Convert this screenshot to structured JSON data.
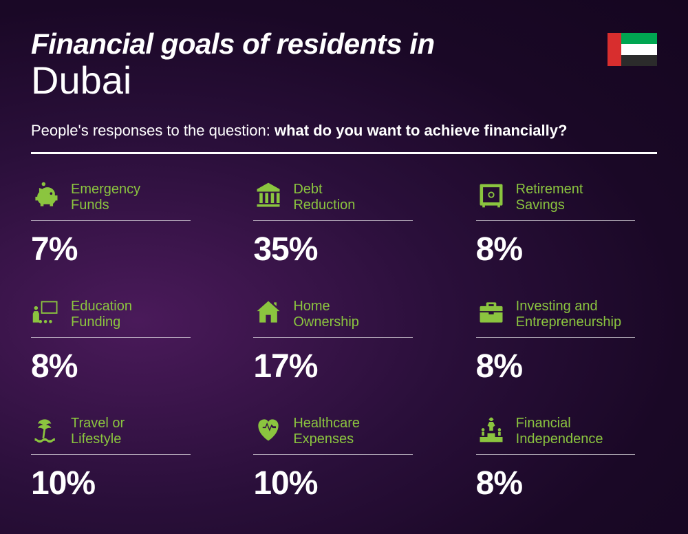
{
  "colors": {
    "accent": "#8bc53f",
    "text": "#ffffff",
    "background_gradient": [
      "#4a1a5a",
      "#2a0f3a",
      "#1a0826",
      "#150620"
    ],
    "flag": {
      "red": "#d82e2e",
      "green": "#00a651",
      "white": "#ffffff",
      "black": "#2b2b2b"
    }
  },
  "title_line1": "Financial goals of residents in",
  "title_line2": "Dubai",
  "subtitle_prefix": "People's responses to the question: ",
  "subtitle_bold": "what do you want to achieve financially?",
  "items": [
    {
      "label": "Emergency\nFunds",
      "value": "7%",
      "icon": "piggy-bank"
    },
    {
      "label": "Debt\nReduction",
      "value": "35%",
      "icon": "bank"
    },
    {
      "label": "Retirement\nSavings",
      "value": "8%",
      "icon": "safe"
    },
    {
      "label": "Education\nFunding",
      "value": "8%",
      "icon": "presentation"
    },
    {
      "label": "Home\nOwnership",
      "value": "17%",
      "icon": "house"
    },
    {
      "label": "Investing and\nEntrepreneurship",
      "value": "8%",
      "icon": "briefcase"
    },
    {
      "label": "Travel or\nLifestyle",
      "value": "10%",
      "icon": "island"
    },
    {
      "label": "Healthcare\nExpenses",
      "value": "10%",
      "icon": "heart-pulse"
    },
    {
      "label": "Financial\nIndependence",
      "value": "8%",
      "icon": "podium"
    }
  ]
}
